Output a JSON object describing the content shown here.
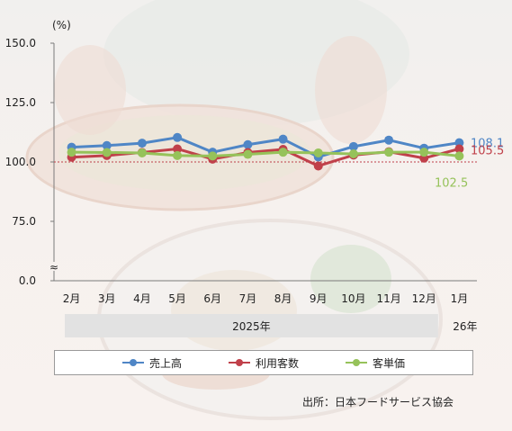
{
  "chart_data": {
    "type": "line",
    "unit_label": "(%)",
    "categories": [
      "2月",
      "3月",
      "4月",
      "5月",
      "6月",
      "7月",
      "8月",
      "9月",
      "10月",
      "11月",
      "12月",
      "1月"
    ],
    "year_groups": [
      {
        "label": "2025年",
        "span": 11
      },
      {
        "label": "26年",
        "span": 1
      }
    ],
    "y_ticks": [
      "150.0",
      "125.0",
      "100.0",
      "75.0",
      "0.0"
    ],
    "ylim": [
      75,
      150
    ],
    "axis_break": "≈",
    "reference_line": 100,
    "series": [
      {
        "name": "売上高",
        "color": "#4f86c6",
        "values": [
          106.2,
          106.9,
          107.9,
          110.3,
          104.1,
          107.3,
          109.6,
          102.1,
          106.5,
          109.2,
          105.8,
          108.1
        ],
        "end_label": "108.1"
      },
      {
        "name": "利用客数",
        "color": "#c0404a",
        "values": [
          102.0,
          102.7,
          104.0,
          105.5,
          101.2,
          104.0,
          105.3,
          98.3,
          102.9,
          104.3,
          101.6,
          105.5
        ],
        "end_label": "105.5"
      },
      {
        "name": "客単価",
        "color": "#96c25a",
        "values": [
          104.1,
          104.0,
          103.8,
          102.7,
          102.5,
          103.2,
          104.1,
          103.8,
          103.4,
          104.1,
          104.1,
          102.5
        ],
        "end_label": "102.5"
      }
    ],
    "source": "出所：日本フードサービス協会"
  }
}
